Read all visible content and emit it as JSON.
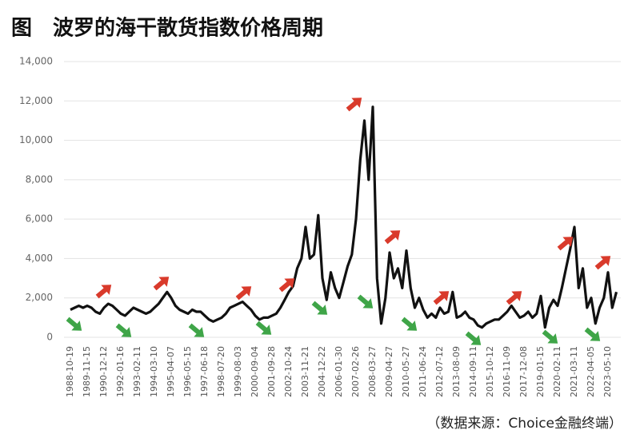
{
  "chart_data": {
    "type": "line",
    "title": "图　波罗的海干散货指数价格周期",
    "source": "（数据来源：Choice金融终端）",
    "categories": [
      "1988-10-19",
      null,
      null,
      null,
      "1989-11-15",
      null,
      null,
      null,
      "1990-12-12",
      null,
      null,
      null,
      "1992-01-16",
      null,
      null,
      null,
      "1993-02-11",
      null,
      null,
      null,
      "1994-03-10",
      null,
      null,
      null,
      "1995-04-07",
      null,
      null,
      null,
      "1996-05-15",
      null,
      null,
      null,
      "1997-06-18",
      null,
      null,
      null,
      "1998-07-20",
      null,
      null,
      null,
      "1999-08-03",
      null,
      null,
      null,
      "2000-09-04",
      null,
      null,
      null,
      "2001-09-28",
      null,
      null,
      null,
      "2002-10-24",
      null,
      null,
      null,
      "2003-11-21",
      null,
      null,
      null,
      "2004-12-22",
      null,
      null,
      null,
      "2006-01-30",
      null,
      null,
      null,
      "2007-02-26",
      null,
      null,
      null,
      "2008-03-27",
      null,
      null,
      null,
      "2009-04-27",
      null,
      null,
      null,
      "2010-05-27",
      null,
      null,
      null,
      "2011-06-24",
      null,
      null,
      null,
      "2012-07-12",
      null,
      null,
      null,
      "2013-08-09",
      null,
      null,
      null,
      "2014-09-11",
      null,
      null,
      null,
      "2015-10-12",
      null,
      null,
      null,
      "2016-11-09",
      null,
      null,
      null,
      "2017-12-08",
      null,
      null,
      null,
      "2019-01-15",
      null,
      null,
      null,
      "2020-02-11",
      null,
      null,
      null,
      "2021-03-11",
      null,
      null,
      null,
      "2022-04-05",
      null,
      null,
      null,
      "2023-05-10",
      null,
      null
    ],
    "values": [
      1400,
      1500,
      1600,
      1500,
      1600,
      1500,
      1300,
      1200,
      1500,
      1700,
      1600,
      1400,
      1200,
      1100,
      1300,
      1500,
      1400,
      1300,
      1200,
      1300,
      1500,
      1700,
      2000,
      2300,
      2000,
      1600,
      1400,
      1300,
      1200,
      1400,
      1300,
      1300,
      1100,
      900,
      800,
      900,
      1000,
      1200,
      1500,
      1600,
      1700,
      1800,
      1600,
      1400,
      1100,
      900,
      1000,
      1000,
      1100,
      1200,
      1500,
      1900,
      2300,
      2600,
      3500,
      4000,
      5600,
      4000,
      4200,
      6200,
      3000,
      1900,
      3300,
      2500,
      2000,
      2800,
      3600,
      4200,
      6000,
      9000,
      11000,
      8000,
      11700,
      3000,
      700,
      2000,
      4300,
      3000,
      3500,
      2500,
      4400,
      2500,
      1500,
      2000,
      1400,
      1000,
      1200,
      1000,
      1500,
      1200,
      1300,
      2300,
      1000,
      1100,
      1300,
      1000,
      900,
      600,
      500,
      700,
      800,
      900,
      900,
      1100,
      1300,
      1600,
      1300,
      1000,
      1100,
      1300,
      1000,
      1200,
      2100,
      500,
      1500,
      1900,
      1600,
      2500,
      3500,
      4500,
      5600,
      2500,
      3500,
      1500,
      2000,
      700,
      1500,
      2000,
      3300,
      1500,
      2300
    ],
    "color": "#111111",
    "ylim": [
      0,
      14000
    ],
    "yticks": [
      0,
      {
        "value": 2000,
        "label": "2,000"
      },
      {
        "value": 4000,
        "label": "4,000"
      },
      {
        "value": 6000,
        "label": "6,000"
      },
      {
        "value": 8000,
        "label": "8,000"
      },
      {
        "value": 10000,
        "label": "10,000"
      },
      {
        "value": 12000,
        "label": "12,000"
      },
      {
        "value": 14000,
        "label": "14,000"
      }
    ],
    "grid": true
  }
}
